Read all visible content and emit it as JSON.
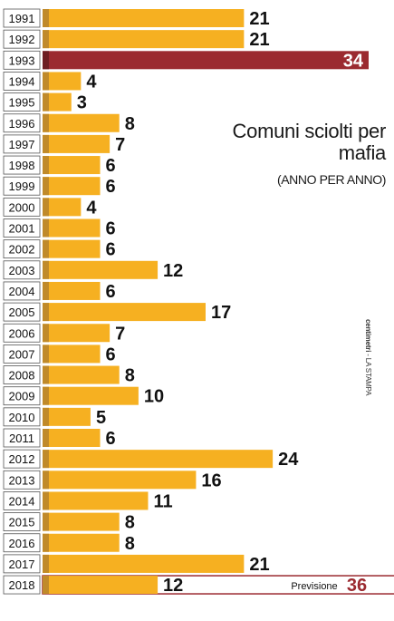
{
  "chart_data": {
    "type": "bar",
    "orientation": "horizontal",
    "title": "Comuni sciolti per mafia",
    "subtitle": "(ANNO PER ANNO)",
    "categories": [
      "1991",
      "1992",
      "1993",
      "1994",
      "1995",
      "1996",
      "1997",
      "1998",
      "1999",
      "2000",
      "2001",
      "2002",
      "2003",
      "2004",
      "2005",
      "2006",
      "2007",
      "2008",
      "2009",
      "2010",
      "2011",
      "2012",
      "2013",
      "2014",
      "2015",
      "2016",
      "2017",
      "2018"
    ],
    "values": [
      21,
      21,
      34,
      4,
      3,
      8,
      7,
      6,
      6,
      4,
      6,
      6,
      12,
      6,
      17,
      7,
      6,
      8,
      10,
      5,
      6,
      24,
      16,
      11,
      8,
      8,
      21,
      12
    ],
    "highlight_index": 2,
    "forecast": {
      "label": "Previsione",
      "value": 36,
      "category": "2018"
    },
    "xlim": [
      0,
      34
    ],
    "grid": false,
    "colors": {
      "bar": "#f6b021",
      "bar_cap": "#c08a2a",
      "highlight": "#9b2a30",
      "highlight_cap": "#6e1d22",
      "forecast_border": "#9b2a30",
      "label_box_border": "#555555"
    }
  },
  "credit": {
    "brand": "centimetri",
    "source": " - LA STAMPA"
  }
}
